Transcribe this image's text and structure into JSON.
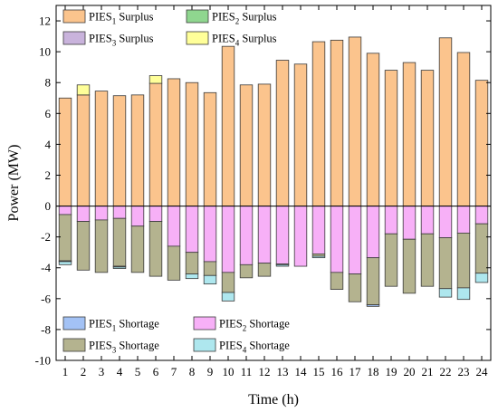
{
  "chart_data": {
    "type": "bar",
    "stacked": true,
    "xlabel": "Time (h)",
    "ylabel": "Power (MW)",
    "ylim": [
      -10,
      13
    ],
    "yticks": [
      -10,
      -8,
      -6,
      -4,
      -2,
      0,
      2,
      4,
      6,
      8,
      10,
      12
    ],
    "categories": [
      "1",
      "2",
      "3",
      "4",
      "5",
      "6",
      "7",
      "8",
      "9",
      "10",
      "11",
      "12",
      "13",
      "14",
      "15",
      "16",
      "17",
      "18",
      "19",
      "20",
      "21",
      "22",
      "23",
      "24"
    ],
    "legend_top": [
      {
        "key": "s1",
        "base": "PIES",
        "sub": "1",
        "suffix": " Surplus"
      },
      {
        "key": "s2",
        "base": "PIES",
        "sub": "2",
        "suffix": " Surplus"
      },
      {
        "key": "s3",
        "base": "PIES",
        "sub": "3",
        "suffix": " Surplus"
      },
      {
        "key": "s4",
        "base": "PIES",
        "sub": "4",
        "suffix": " Surplus"
      }
    ],
    "legend_bottom": [
      {
        "key": "h1",
        "base": "PIES",
        "sub": "1",
        "suffix": " Shortage"
      },
      {
        "key": "h2",
        "base": "PIES",
        "sub": "2",
        "suffix": " Shortage"
      },
      {
        "key": "h3",
        "base": "PIES",
        "sub": "3",
        "suffix": " Shortage"
      },
      {
        "key": "h4",
        "base": "PIES",
        "sub": "4",
        "suffix": " Shortage"
      }
    ],
    "colors": {
      "s1": "#fbc48d",
      "s2": "#8fd68f",
      "s3": "#c9b3dc",
      "s4": "#ffff99",
      "h1": "#a3c2f5",
      "h2": "#f7b0f7",
      "h3": "#b4b38f",
      "h4": "#aee7ee"
    },
    "positive_series": [
      {
        "key": "s1",
        "values": [
          7.0,
          7.2,
          7.45,
          7.15,
          7.2,
          7.95,
          8.25,
          8.0,
          7.35,
          10.35,
          7.85,
          7.9,
          9.45,
          9.2,
          10.65,
          10.75,
          10.95,
          9.9,
          8.8,
          9.3,
          8.8,
          10.9,
          9.95,
          8.15
        ]
      },
      {
        "key": "s2",
        "values": [
          0,
          0,
          0,
          0,
          0,
          0,
          0,
          0,
          0,
          0,
          0,
          0,
          0,
          0,
          0,
          0,
          0,
          0,
          0,
          0,
          0,
          0,
          0,
          0
        ]
      },
      {
        "key": "s3",
        "values": [
          0,
          0,
          0,
          0,
          0,
          0,
          0,
          0,
          0,
          0,
          0,
          0,
          0,
          0,
          0,
          0,
          0,
          0,
          0,
          0,
          0,
          0,
          0,
          0
        ]
      },
      {
        "key": "s4",
        "values": [
          0,
          0.65,
          0,
          0,
          0,
          0.5,
          0,
          0,
          0,
          0,
          0,
          0,
          0,
          0,
          0,
          0,
          0,
          0,
          0,
          0,
          0,
          0,
          0,
          0
        ]
      }
    ],
    "negative_series": [
      {
        "key": "h2",
        "values": [
          -0.55,
          -1.0,
          -0.9,
          -0.8,
          -1.3,
          -1.0,
          -2.6,
          -3.0,
          -3.6,
          -4.3,
          -3.8,
          -3.7,
          -3.75,
          -3.9,
          -3.1,
          -4.3,
          -4.4,
          -3.35,
          -1.8,
          -2.15,
          -1.8,
          -2.05,
          -1.75,
          -1.15
        ]
      },
      {
        "key": "h3",
        "values": [
          -3.0,
          -3.15,
          -3.4,
          -3.1,
          -3.0,
          -3.55,
          -2.2,
          -1.4,
          -0.9,
          -1.3,
          -0.85,
          -0.85,
          -0.05,
          0,
          -0.15,
          -1.1,
          -1.8,
          -3.05,
          -3.4,
          -3.5,
          -3.4,
          -3.3,
          -3.55,
          -3.2
        ]
      },
      {
        "key": "h1",
        "values": [
          -0.05,
          0,
          0,
          -0.05,
          0,
          0,
          0,
          0,
          0,
          0,
          0,
          0,
          0,
          0,
          0,
          0,
          0,
          -0.1,
          0,
          0,
          0,
          0,
          0,
          0
        ]
      },
      {
        "key": "h4",
        "values": [
          -0.2,
          0,
          0,
          -0.1,
          0,
          0,
          0,
          -0.3,
          -0.55,
          -0.55,
          0,
          0,
          -0.1,
          0,
          -0.1,
          0,
          0,
          0,
          0,
          0,
          0,
          -0.55,
          -0.75,
          -0.6
        ]
      }
    ]
  }
}
